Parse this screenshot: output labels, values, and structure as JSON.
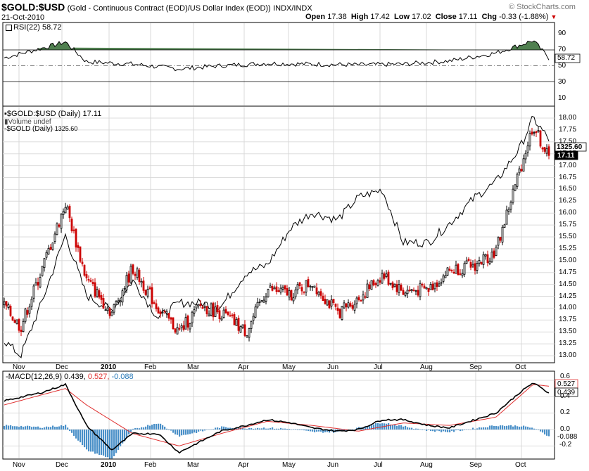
{
  "header": {
    "symbol": "$GOLD:$USD",
    "description": "(Gold - Continuous Contract (EOD)/US Dollar Index (EOD))",
    "exchange": "INDX/INDX",
    "date": "21-Oct-2010",
    "watermark": "© StockCharts.com",
    "quote": {
      "open_label": "Open",
      "open": "17.38",
      "high_label": "High",
      "high": "17.42",
      "low_label": "Low",
      "low": "17.02",
      "close_label": "Close",
      "close": "17.11",
      "chg_label": "Chg",
      "chg": "-0.33 (-1.88%)"
    }
  },
  "rsi": {
    "legend": "RSI(22) 58.72",
    "current_label": "58.72",
    "ticks": [
      "90",
      "70",
      "50",
      "30",
      "10"
    ]
  },
  "price": {
    "legend_main": "$GOLD:$USD (Daily) 17.11",
    "legend_volume": "Volume undef",
    "legend_gold": "$GOLD (Daily)",
    "legend_gold_value": "1325.60",
    "label_gold": "1325.60",
    "label_ratio": "17.11",
    "ticks": [
      "18.00",
      "17.75",
      "17.50",
      "17.25",
      "17.00",
      "16.75",
      "16.50",
      "16.25",
      "16.00",
      "15.75",
      "15.50",
      "15.25",
      "15.00",
      "14.75",
      "14.50",
      "14.25",
      "14.00",
      "13.75",
      "13.50",
      "13.25",
      "13.00"
    ]
  },
  "macd": {
    "legend_name": "MACD(12,26,9)",
    "legend_macd": "0.439,",
    "legend_signal": "0.527,",
    "legend_hist": "-0.088",
    "label_signal": "0.527",
    "label_macd": "0.439",
    "label_hist": "-0.088",
    "ticks": [
      "0.6",
      "0.4",
      "0.2",
      "0.0",
      "-0.2"
    ]
  },
  "months": [
    "Nov",
    "Dec",
    "2010",
    "Feb",
    "Mar",
    "Apr",
    "May",
    "Jun",
    "Jul",
    "Aug",
    "Sep",
    "Oct"
  ],
  "colors": {
    "up": "#000000",
    "down": "#cc0000",
    "rsi_fill": "#4f7f4f",
    "signal": "#e03030",
    "hist": "#4a90c8",
    "grid": "#d8d8d8",
    "gold_line": "#000000"
  },
  "chart_data": {
    "type": "line",
    "title": "$GOLD:$USD",
    "series": [
      {
        "name": "$GOLD:$USD (Daily)",
        "dates": [
          "2009-10-21",
          "2009-11-01",
          "2009-11-15",
          "2009-12-01",
          "2009-12-15",
          "2010-01-01",
          "2010-01-15",
          "2010-02-01",
          "2010-02-15",
          "2010-03-01",
          "2010-03-15",
          "2010-04-01",
          "2010-04-15",
          "2010-05-01",
          "2010-05-15",
          "2010-06-01",
          "2010-06-15",
          "2010-07-01",
          "2010-07-15",
          "2010-08-01",
          "2010-08-15",
          "2010-09-01",
          "2010-09-15",
          "2010-10-01",
          "2010-10-10",
          "2010-10-21"
        ],
        "values": [
          14.05,
          13.6,
          14.8,
          16.2,
          14.6,
          13.9,
          14.85,
          14.0,
          13.5,
          14.05,
          13.9,
          13.5,
          14.4,
          14.3,
          14.55,
          13.9,
          14.2,
          14.7,
          14.35,
          14.4,
          14.8,
          14.9,
          15.2,
          16.9,
          17.85,
          17.11
        ]
      },
      {
        "name": "$GOLD (Daily)",
        "dates": [
          "2009-10-21",
          "2009-11-01",
          "2009-11-15",
          "2009-12-01",
          "2009-12-15",
          "2010-01-01",
          "2010-01-15",
          "2010-02-01",
          "2010-02-15",
          "2010-03-01",
          "2010-03-15",
          "2010-04-01",
          "2010-04-15",
          "2010-05-01",
          "2010-05-15",
          "2010-06-01",
          "2010-06-15",
          "2010-07-01",
          "2010-07-15",
          "2010-08-01",
          "2010-08-15",
          "2010-09-01",
          "2010-09-15",
          "2010-10-01",
          "2010-10-10",
          "2010-10-21"
        ],
        "values": [
          1060,
          1040,
          1110,
          1200,
          1120,
          1100,
          1140,
          1090,
          1110,
          1110,
          1105,
          1150,
          1160,
          1210,
          1230,
          1220,
          1250,
          1260,
          1190,
          1190,
          1215,
          1250,
          1270,
          1315,
          1355,
          1325.6
        ]
      },
      {
        "name": "RSI(22)",
        "dates": [
          "2009-10-21",
          "2009-11-15",
          "2009-12-01",
          "2009-12-15",
          "2010-01-15",
          "2010-02-15",
          "2010-03-15",
          "2010-04-15",
          "2010-05-15",
          "2010-06-15",
          "2010-07-15",
          "2010-08-15",
          "2010-09-15",
          "2010-10-01",
          "2010-10-10",
          "2010-10-21"
        ],
        "values": [
          60,
          72,
          80,
          55,
          52,
          46,
          50,
          53,
          52,
          51,
          52,
          56,
          66,
          76,
          82,
          58.72
        ]
      },
      {
        "name": "MACD(12,26,9)",
        "dates": [
          "2009-10-21",
          "2009-11-15",
          "2009-12-01",
          "2009-12-15",
          "2010-01-01",
          "2010-01-15",
          "2010-02-01",
          "2010-02-15",
          "2010-03-01",
          "2010-03-15",
          "2010-04-01",
          "2010-04-15",
          "2010-05-01",
          "2010-05-15",
          "2010-06-01",
          "2010-06-15",
          "2010-07-01",
          "2010-07-15",
          "2010-08-01",
          "2010-08-15",
          "2010-09-01",
          "2010-09-15",
          "2010-10-01",
          "2010-10-10",
          "2010-10-21"
        ],
        "values": [
          0.35,
          0.45,
          0.55,
          0.05,
          -0.25,
          -0.05,
          -0.05,
          -0.28,
          -0.15,
          -0.02,
          0.05,
          0.12,
          0.08,
          0.02,
          -0.02,
          0.0,
          0.12,
          0.12,
          0.05,
          0.02,
          0.12,
          0.2,
          0.45,
          0.57,
          0.439
        ]
      },
      {
        "name": "Signal",
        "dates": [
          "2009-10-21",
          "2009-12-01",
          "2009-12-15",
          "2010-01-15",
          "2010-02-15",
          "2010-03-15",
          "2010-04-15",
          "2010-05-15",
          "2010-06-15",
          "2010-07-15",
          "2010-08-15",
          "2010-09-15",
          "2010-10-10",
          "2010-10-21"
        ],
        "values": [
          0.3,
          0.5,
          0.3,
          -0.05,
          -0.2,
          -0.05,
          0.1,
          0.05,
          -0.02,
          0.08,
          0.05,
          0.15,
          0.55,
          0.527
        ]
      }
    ],
    "ylim": [
      13.0,
      18.0
    ],
    "grid": true
  }
}
